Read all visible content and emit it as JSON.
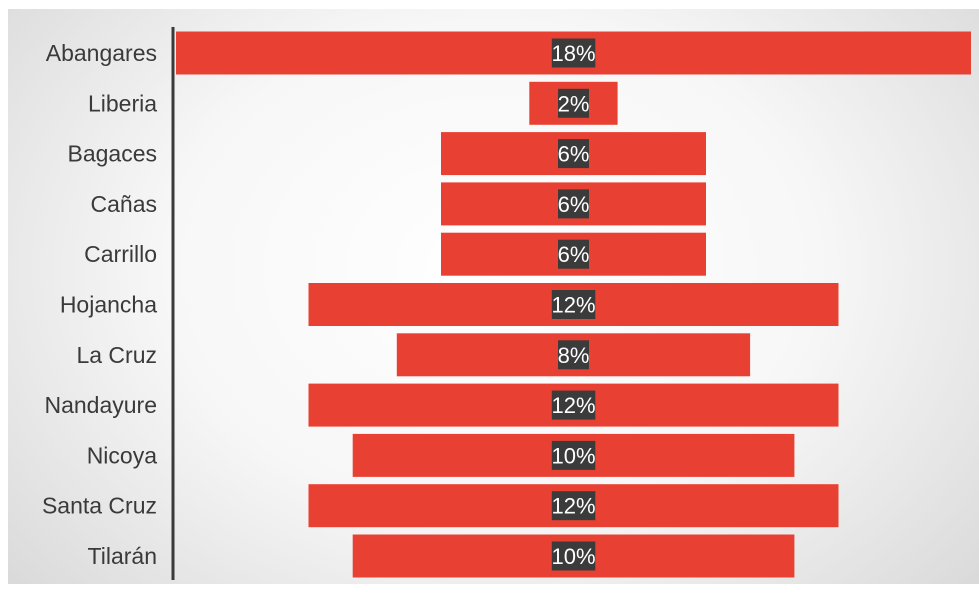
{
  "colors": {
    "bar": "#e84133",
    "label_bg": "#3b3b3b",
    "axis": "#3a3a3a"
  },
  "chart_data": {
    "type": "bar",
    "orientation": "horizontal-centered",
    "categories": [
      "Abangares",
      "Liberia",
      "Bagaces",
      "Cañas",
      "Carrillo",
      "Hojancha",
      "La Cruz",
      "Nandayure",
      "Nicoya",
      "Santa Cruz",
      "Tilarán"
    ],
    "values": [
      18,
      2,
      6,
      6,
      6,
      12,
      8,
      12,
      10,
      12,
      10
    ],
    "labels": [
      "18%",
      "2%",
      "6%",
      "6%",
      "6%",
      "12%",
      "8%",
      "12%",
      "10%",
      "12%",
      "10%"
    ],
    "title": "",
    "xlabel": "",
    "ylabel": "",
    "xlim": [
      0,
      18
    ],
    "grid": false,
    "legend": "none"
  }
}
